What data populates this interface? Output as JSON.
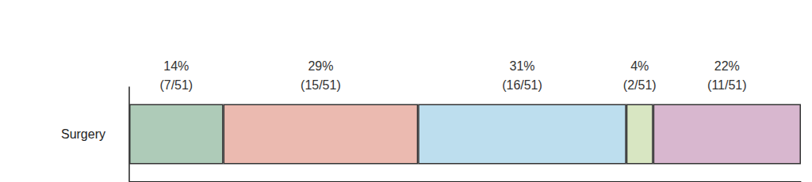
{
  "chart_data": {
    "type": "bar",
    "orientation": "horizontal",
    "stacked": true,
    "data_labels": true,
    "tick_labels": "y",
    "categories": [
      "Surgery"
    ],
    "xlim": [
      0,
      100
    ],
    "series": [
      {
        "color": "#aecbb8",
        "values": [
          14
        ],
        "value_labels": [
          "14%\n(7/51)"
        ]
      },
      {
        "color": "#ebbab0",
        "values": [
          29
        ],
        "value_labels": [
          "29%\n(15/51)"
        ]
      },
      {
        "color": "#bddeee",
        "values": [
          31
        ],
        "value_labels": [
          "31%\n(16/51)"
        ]
      },
      {
        "color": "#d8e6c2",
        "values": [
          4
        ],
        "value_labels": [
          "4%\n(2/51)"
        ]
      },
      {
        "color": "#d8b7cf",
        "values": [
          22
        ],
        "value_labels": [
          "22%\n(11/51)"
        ]
      }
    ]
  }
}
